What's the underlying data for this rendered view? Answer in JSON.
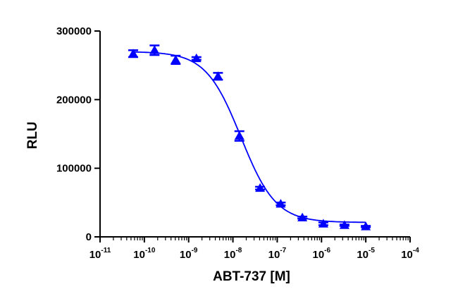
{
  "chart_data": {
    "type": "scatter",
    "title": "",
    "xlabel": "ABT-737 [M]",
    "ylabel": "RLU",
    "x_scale": "log",
    "xlim": [
      1e-11,
      0.0001
    ],
    "ylim": [
      0,
      300000
    ],
    "x_ticks": [
      {
        "base": "10",
        "exp": "-11"
      },
      {
        "base": "10",
        "exp": "-10"
      },
      {
        "base": "10",
        "exp": "-9"
      },
      {
        "base": "10",
        "exp": "-8"
      },
      {
        "base": "10",
        "exp": "-7"
      },
      {
        "base": "10",
        "exp": "-6"
      },
      {
        "base": "10",
        "exp": "-5"
      },
      {
        "base": "10",
        "exp": "-4"
      }
    ],
    "y_ticks": [
      "0",
      "100000",
      "200000",
      "300000"
    ],
    "grid": false,
    "legend": "none",
    "colors": {
      "series": "#0000ff",
      "axes": "#000000"
    },
    "marker": "triangle",
    "points": [
      {
        "x": 5.6e-11,
        "y": 267000,
        "err": 5000
      },
      {
        "x": 1.7e-10,
        "y": 272000,
        "err": 7000
      },
      {
        "x": 5.1e-10,
        "y": 258000,
        "err": 6000
      },
      {
        "x": 1.5e-09,
        "y": 260000,
        "err": 2000
      },
      {
        "x": 4.6e-09,
        "y": 234000,
        "err": 5000
      },
      {
        "x": 1.4e-08,
        "y": 147000,
        "err": 7000
      },
      {
        "x": 4.1e-08,
        "y": 71000,
        "err": 2000
      },
      {
        "x": 1.2e-07,
        "y": 48000,
        "err": 2000
      },
      {
        "x": 3.7e-07,
        "y": 28000,
        "err": 1500
      },
      {
        "x": 1.1e-06,
        "y": 19000,
        "err": 2000
      },
      {
        "x": 3.3e-06,
        "y": 17000,
        "err": 1000
      },
      {
        "x": 1e-05,
        "y": 15000,
        "err": 1000
      }
    ],
    "fit": {
      "model": "4PL",
      "top": 270000,
      "bottom": 21000,
      "log_ic50": -7.82,
      "hill": -1.1
    }
  }
}
